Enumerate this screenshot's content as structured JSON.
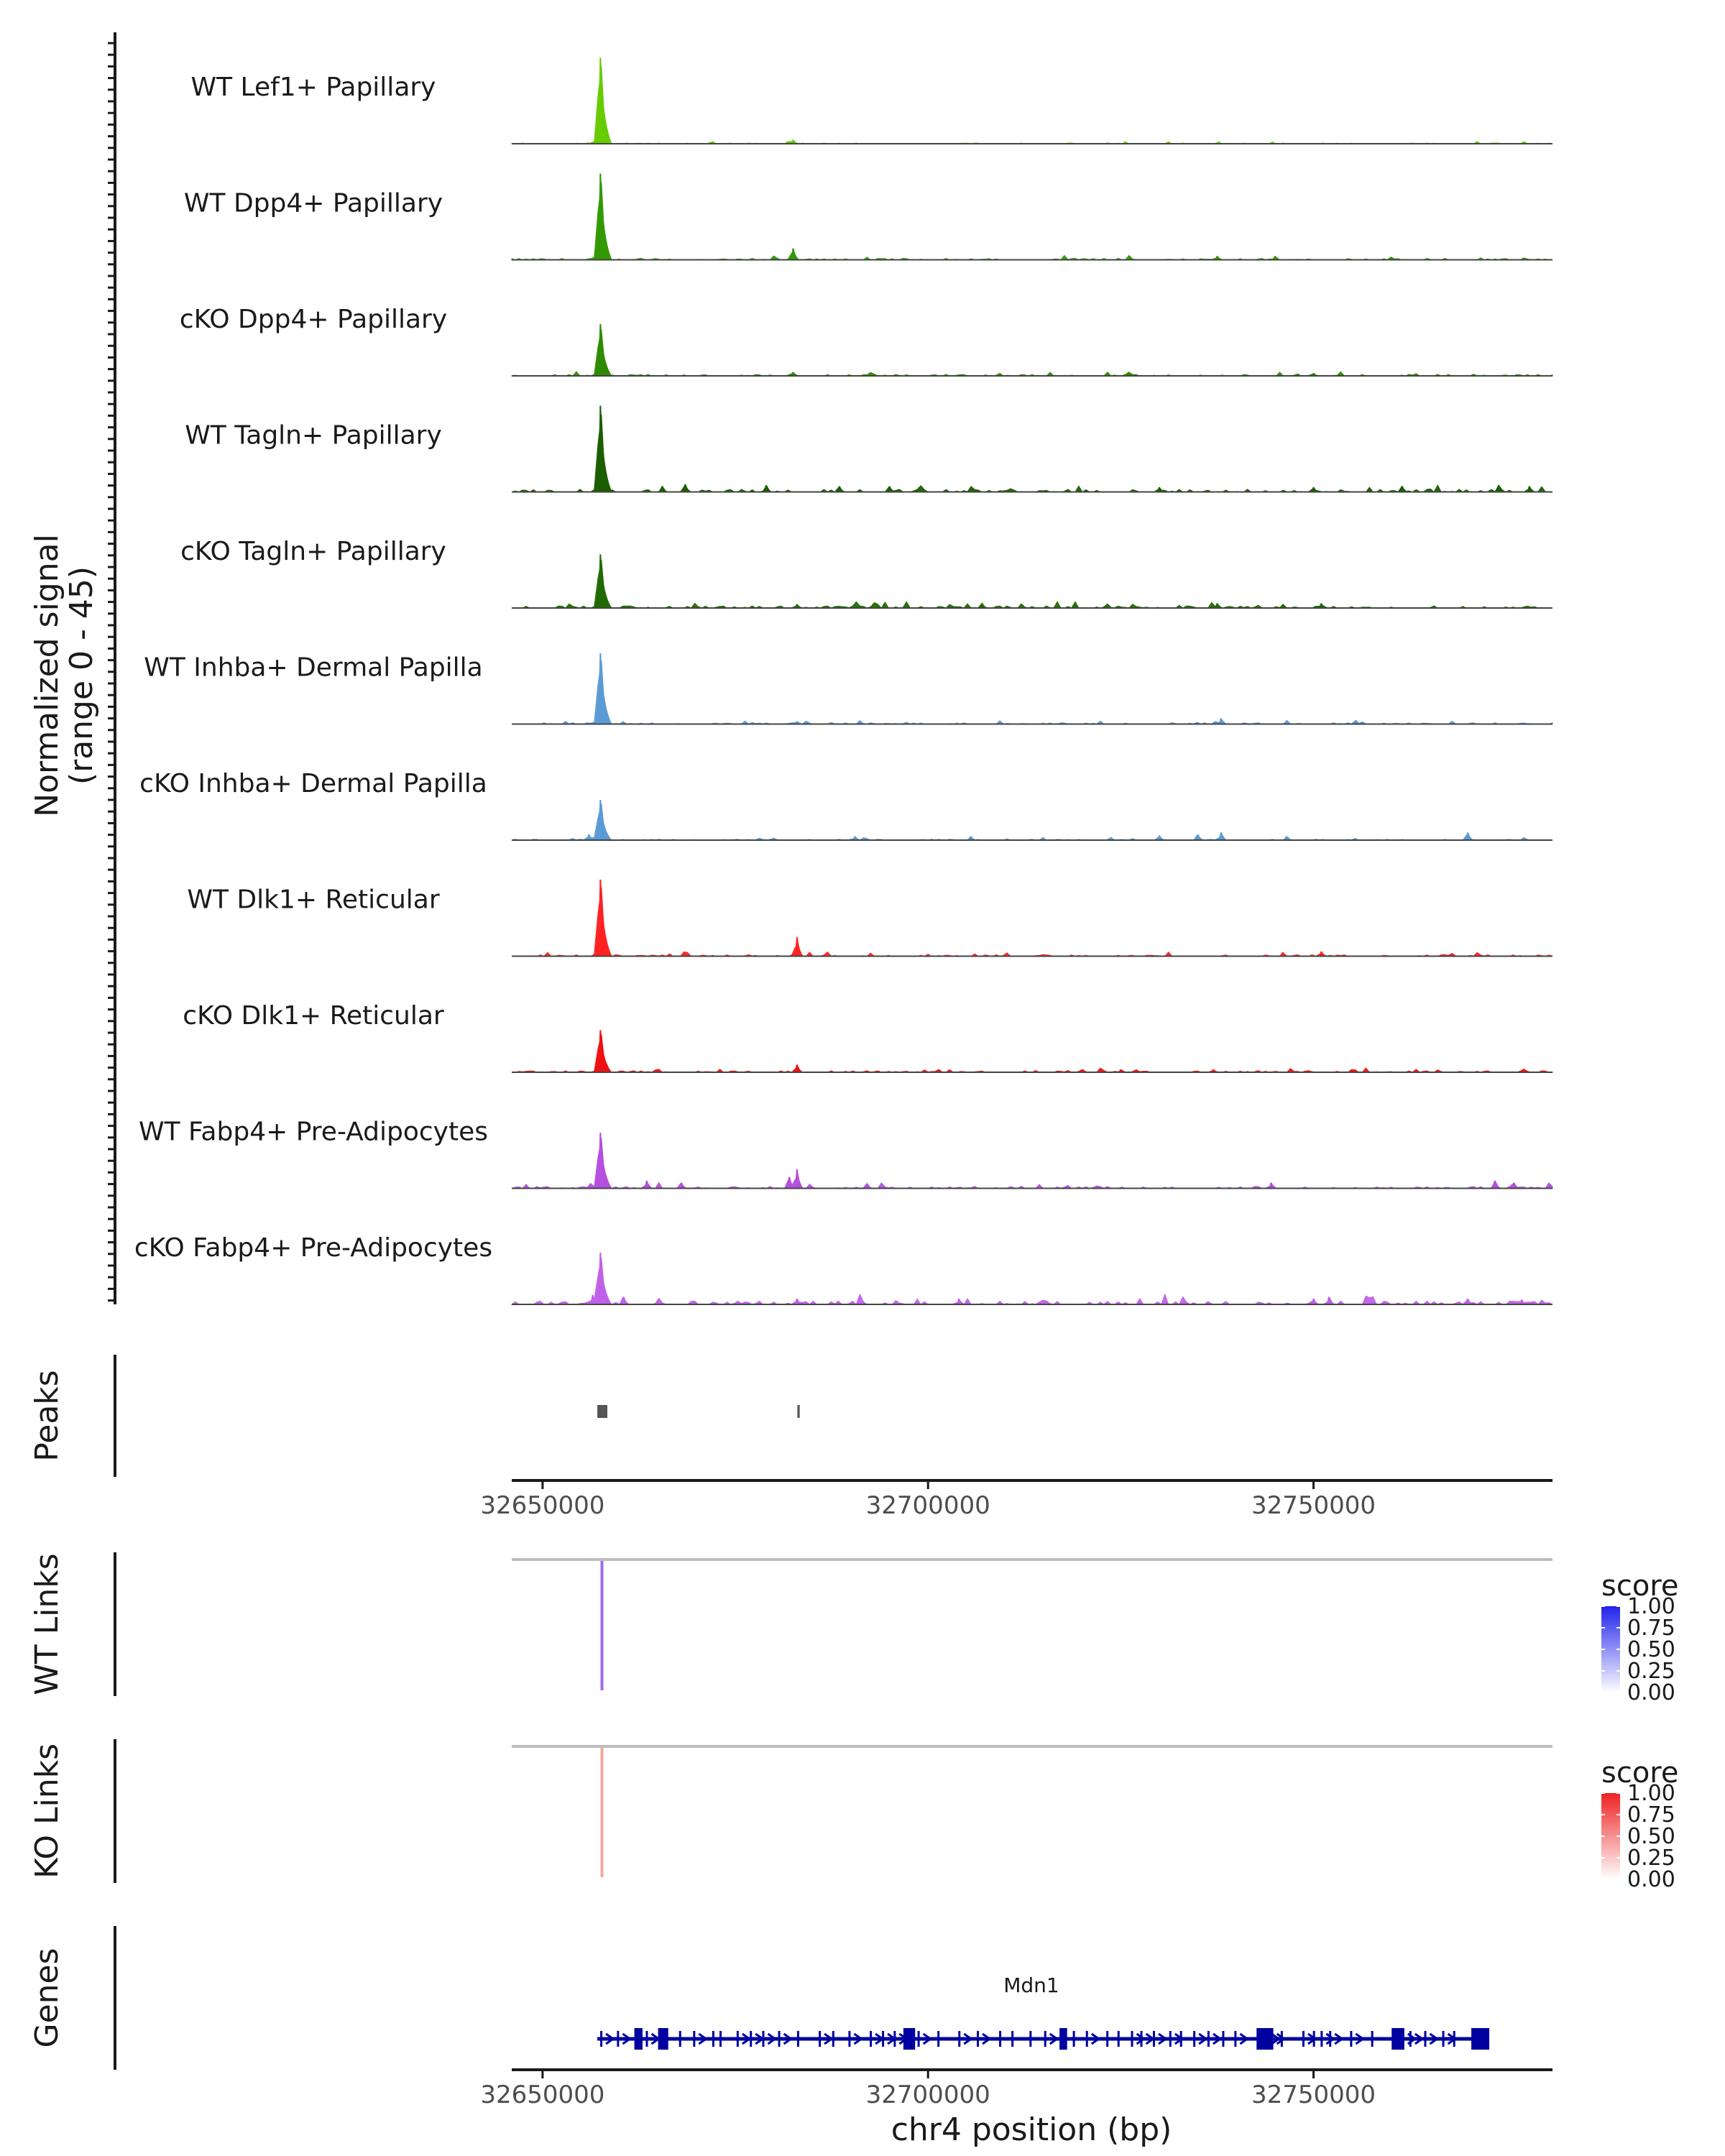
{
  "chart_data": {
    "type": "area",
    "title": "",
    "ylabel": "Normalized signal",
    "ylabel_range": "(range 0 - 45)",
    "ylim": [
      0,
      45
    ],
    "xlabel": "chr4 position (bp)",
    "xlim": [
      32646000,
      32781000
    ],
    "x_ticks": [
      32650000,
      32700000,
      32750000
    ],
    "x_tick_labels": [
      "32650000",
      "32700000",
      "32750000"
    ],
    "tracks": [
      {
        "name": "WT Lef1+ Papillary",
        "color": "#66CC00",
        "noise": 0.4,
        "peaks": [
          {
            "x": 32657500,
            "y": 45
          },
          {
            "x": 32682500,
            "y": 2
          }
        ]
      },
      {
        "name": "WT Dpp4+ Papillary",
        "color": "#339900",
        "noise": 0.8,
        "peaks": [
          {
            "x": 32657500,
            "y": 45
          },
          {
            "x": 32682500,
            "y": 6
          },
          {
            "x": 32680000,
            "y": 2
          },
          {
            "x": 32737500,
            "y": 2
          },
          {
            "x": 32745000,
            "y": 2
          },
          {
            "x": 32760000,
            "y": 1.5
          }
        ]
      },
      {
        "name": "cKO Dpp4+ Papillary",
        "color": "#2E8B00",
        "noise": 0.8,
        "peaks": [
          {
            "x": 32657500,
            "y": 27
          },
          {
            "x": 32682500,
            "y": 2
          },
          {
            "x": 32726000,
            "y": 2
          },
          {
            "x": 32750000,
            "y": 1.5
          }
        ]
      },
      {
        "name": "WT Tagln+ Papillary",
        "color": "#1A5E00",
        "noise": 1.4,
        "peaks": [
          {
            "x": 32657500,
            "y": 45
          },
          {
            "x": 32665500,
            "y": 3
          },
          {
            "x": 32668500,
            "y": 4
          },
          {
            "x": 32679000,
            "y": 3.5
          },
          {
            "x": 32688500,
            "y": 3
          },
          {
            "x": 32695000,
            "y": 3
          },
          {
            "x": 32730000,
            "y": 2.5
          },
          {
            "x": 32750000,
            "y": 2.5
          },
          {
            "x": 32761500,
            "y": 3
          },
          {
            "x": 32774000,
            "y": 3.5
          },
          {
            "x": 32778000,
            "y": 3
          }
        ]
      },
      {
        "name": "cKO Tagln+ Papillary",
        "color": "#1F6B00",
        "noise": 1.1,
        "peaks": [
          {
            "x": 32657500,
            "y": 28
          },
          {
            "x": 32683000,
            "y": 2
          },
          {
            "x": 32707000,
            "y": 2.5
          },
          {
            "x": 32737500,
            "y": 2.5
          },
          {
            "x": 32751000,
            "y": 2.5
          },
          {
            "x": 32746000,
            "y": 2
          }
        ]
      },
      {
        "name": "WT Inhba+ Dermal Papilla",
        "color": "#5B9BD5",
        "noise": 0.7,
        "peaks": [
          {
            "x": 32657500,
            "y": 37
          },
          {
            "x": 32683000,
            "y": 1.5
          },
          {
            "x": 32738000,
            "y": 3
          },
          {
            "x": 32755500,
            "y": 2
          },
          {
            "x": 32768000,
            "y": 1.5
          }
        ]
      },
      {
        "name": "cKO Inhba+ Dermal Papilla",
        "color": "#5B9BD5",
        "noise": 0.5,
        "peaks": [
          {
            "x": 32657500,
            "y": 21
          },
          {
            "x": 32656000,
            "y": 3
          },
          {
            "x": 32690500,
            "y": 2
          },
          {
            "x": 32705500,
            "y": 2
          },
          {
            "x": 32730000,
            "y": 2.5
          },
          {
            "x": 32735000,
            "y": 3
          },
          {
            "x": 32738000,
            "y": 4
          },
          {
            "x": 32770000,
            "y": 4
          },
          {
            "x": 32746500,
            "y": 2
          }
        ]
      },
      {
        "name": "WT Dlk1+ Reticular",
        "color": "#FF2222",
        "noise": 0.8,
        "peaks": [
          {
            "x": 32657500,
            "y": 40
          },
          {
            "x": 32683000,
            "y": 10
          },
          {
            "x": 32746000,
            "y": 2
          },
          {
            "x": 32751000,
            "y": 2.5
          },
          {
            "x": 32768000,
            "y": 1.5
          }
        ]
      },
      {
        "name": "cKO Dlk1+ Reticular",
        "color": "#EE1111",
        "noise": 0.8,
        "peaks": [
          {
            "x": 32657500,
            "y": 22
          },
          {
            "x": 32683000,
            "y": 4
          },
          {
            "x": 32725000,
            "y": 1.5
          },
          {
            "x": 32737000,
            "y": 1.5
          },
          {
            "x": 32755000,
            "y": 1.5
          }
        ]
      },
      {
        "name": "WT Fabp4+ Pre-Adipocytes",
        "color": "#B44FE0",
        "noise": 1.0,
        "peaks": [
          {
            "x": 32657500,
            "y": 29
          },
          {
            "x": 32663500,
            "y": 4
          },
          {
            "x": 32668000,
            "y": 3
          },
          {
            "x": 32682000,
            "y": 6
          },
          {
            "x": 32683000,
            "y": 10
          },
          {
            "x": 32744500,
            "y": 3
          },
          {
            "x": 32773500,
            "y": 4
          },
          {
            "x": 32776000,
            "y": 3
          }
        ]
      },
      {
        "name": "cKO Fabp4+ Pre-Adipocytes",
        "color": "#C060E8",
        "noise": 1.8,
        "peaks": [
          {
            "x": 32657500,
            "y": 27
          },
          {
            "x": 32656500,
            "y": 5
          },
          {
            "x": 32660500,
            "y": 4
          },
          {
            "x": 32683000,
            "y": 3
          },
          {
            "x": 32704000,
            "y": 3
          },
          {
            "x": 32750000,
            "y": 3
          },
          {
            "x": 32752000,
            "y": 4
          },
          {
            "x": 32770000,
            "y": 3
          },
          {
            "x": 32777000,
            "y": 2.5
          }
        ]
      }
    ],
    "peaks_track": {
      "label": "Peaks",
      "color": "#555555",
      "intervals": [
        [
          32657100,
          32658400
        ],
        [
          32683050,
          32683350
        ]
      ]
    },
    "links_tracks": [
      {
        "label": "WT Links",
        "anchor_start": 32657700,
        "anchor_end": 32657700,
        "score": 0.55,
        "gradient_high": "#2222EE",
        "gradient_low": "#FFFFFF",
        "link_color": "#A06BE8"
      },
      {
        "label": "KO Links",
        "anchor_start": 32657700,
        "anchor_end": 32657700,
        "score": 0.35,
        "gradient_high": "#EE2222",
        "gradient_low": "#FFFFFF",
        "link_color": "#F5A896"
      }
    ],
    "legend": {
      "title": "score",
      "labels": [
        "1.00",
        "0.75",
        "0.50",
        "0.25",
        "0.00"
      ]
    },
    "genes_track": {
      "label": "Genes",
      "gene_name": "Mdn1",
      "start": 32657100,
      "end": 32772800,
      "color": "#0000A0"
    }
  }
}
